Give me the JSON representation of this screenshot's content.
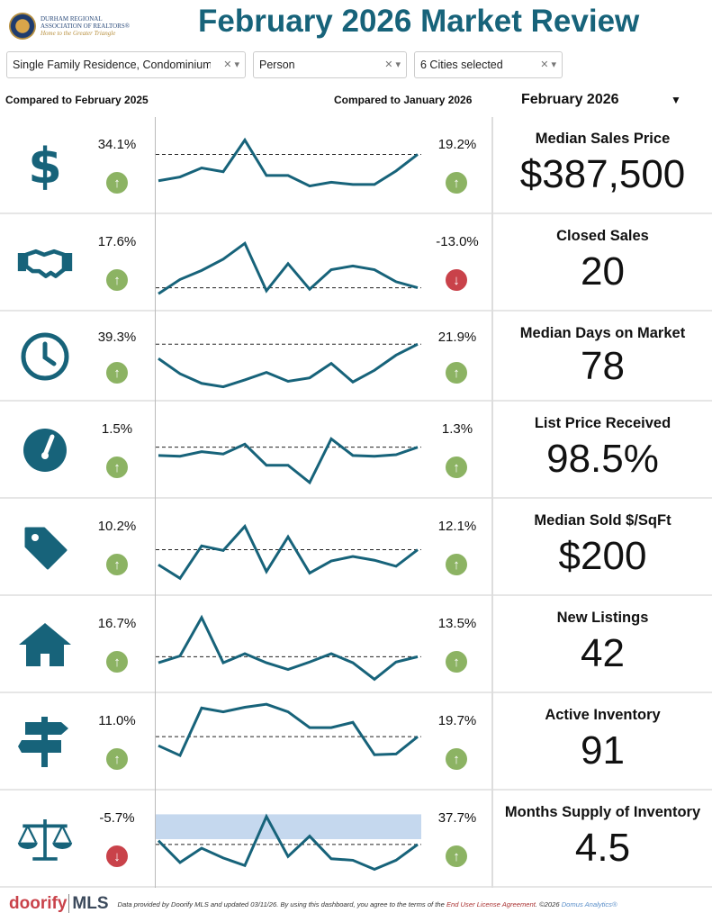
{
  "header": {
    "logo_lines": [
      "DURHAM REGIONAL",
      "ASSOCIATION OF REALTORS®",
      "Home to the Greater Triangle"
    ],
    "title": "February 2026 Market Review"
  },
  "filters": [
    {
      "value": "Single Family Residence, Condominium"
    },
    {
      "value": "Person"
    },
    {
      "value": "6 Cities selected"
    }
  ],
  "compare_left": "Compared to February 2025",
  "compare_right": "Compared to January 2026",
  "month_select": "February 2026",
  "colors": {
    "accent": "#17637a",
    "up": "#8cb363",
    "down": "#c9424a",
    "band": "#c5d8ee"
  },
  "metrics": [
    {
      "title": "Median Sales Price",
      "value": "$387,500",
      "yoy": "34.1%",
      "yoy_dir": "up",
      "mom": "19.2%",
      "mom_dir": "up",
      "icon": "dollar-icon",
      "spark": [
        35,
        40,
        52,
        47,
        89,
        42,
        42,
        28,
        33,
        30,
        30,
        48,
        70
      ]
    },
    {
      "title": "Closed Sales",
      "value": "20",
      "yoy": "17.6%",
      "yoy_dir": "up",
      "mom": "-13.0%",
      "mom_dir": "down",
      "icon": "handshake-icon",
      "spark": [
        14,
        33,
        45,
        60,
        81,
        18,
        54,
        20,
        46,
        51,
        46,
        30,
        22
      ]
    },
    {
      "title": "Median Days on Market",
      "value": "78",
      "yoy": "39.3%",
      "yoy_dir": "up",
      "mom": "21.9%",
      "mom_dir": "up",
      "icon": "clock-icon",
      "spark": [
        52,
        30,
        16,
        11,
        21,
        32,
        19,
        24,
        45,
        18,
        35,
        57,
        73
      ]
    },
    {
      "title": "List Price Received",
      "value": "98.5%",
      "yoy": "1.5%",
      "yoy_dir": "up",
      "mom": "1.3%",
      "mom_dir": "up",
      "icon": "gauge-icon",
      "spark": [
        48,
        47,
        53,
        50,
        63,
        35,
        35,
        12,
        70,
        48,
        47,
        49,
        59
      ]
    },
    {
      "title": "Median Sold $/SqFt",
      "value": "$200",
      "yoy": "10.2%",
      "yoy_dir": "up",
      "mom": "12.1%",
      "mom_dir": "up",
      "icon": "price-tag-icon",
      "spark": [
        32,
        14,
        57,
        51,
        83,
        23,
        69,
        21,
        37,
        43,
        38,
        30,
        52
      ]
    },
    {
      "title": "New Listings",
      "value": "42",
      "yoy": "16.7%",
      "yoy_dir": "up",
      "mom": "13.5%",
      "mom_dir": "up",
      "icon": "house-icon",
      "spark": [
        31,
        40,
        91,
        31,
        43,
        31,
        22,
        32,
        43,
        31,
        9,
        32,
        39
      ]
    },
    {
      "title": "Active Inventory",
      "value": "91",
      "yoy": "11.0%",
      "yoy_dir": "up",
      "mom": "19.7%",
      "mom_dir": "up",
      "icon": "signpost-icon",
      "spark": [
        50,
        37,
        100,
        95,
        101,
        105,
        95,
        74,
        74,
        81,
        38,
        39,
        62
      ]
    },
    {
      "title": "Months Supply of Inventory",
      "value": "4.5",
      "yoy": "-5.7%",
      "yoy_dir": "down",
      "mom": "37.7%",
      "mom_dir": "up",
      "icon": "scale-icon",
      "spark": [
        53,
        24,
        43,
        30,
        20,
        85,
        32,
        59,
        29,
        27,
        15,
        27,
        48
      ],
      "band": [
        55,
        88
      ]
    }
  ],
  "footer": {
    "brand": "doorify",
    "brand_suffix": "MLS",
    "text": "Data provided by Doorify MLS and updated 03/11/26.  By using this dashboard, you agree to the terms of the ",
    "link": "End User License Agreement",
    "copyright": ".  ©2026 ",
    "company": "Domus Analytics®"
  }
}
